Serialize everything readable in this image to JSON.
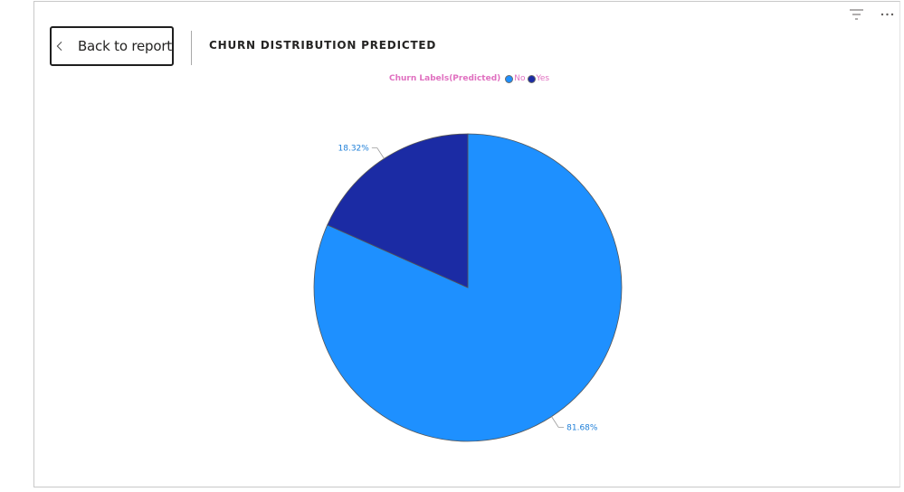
{
  "header": {
    "back_label": "Back to report",
    "visual_title": "CHURN DISTRIBUTION PREDICTED"
  },
  "icons": {
    "back": "chevron-left-icon",
    "filter": "filter-icon",
    "more": "more-options-icon"
  },
  "colors": {
    "no": "#1e90ff",
    "yes": "#1b2ba4",
    "legend_text": "#e070c0",
    "label_text": "#1e7fd8",
    "leader": "#9a9a9a",
    "slice_border": "#555555"
  },
  "chart_data": {
    "type": "pie",
    "title": "CHURN DISTRIBUTION PREDICTED",
    "legend_title": "Churn Labels(Predicted)",
    "legend_position": "top-center",
    "slices": [
      {
        "label": "No",
        "value": 81.68,
        "display": "81.68%"
      },
      {
        "label": "Yes",
        "value": 18.32,
        "display": "18.32%"
      }
    ]
  }
}
